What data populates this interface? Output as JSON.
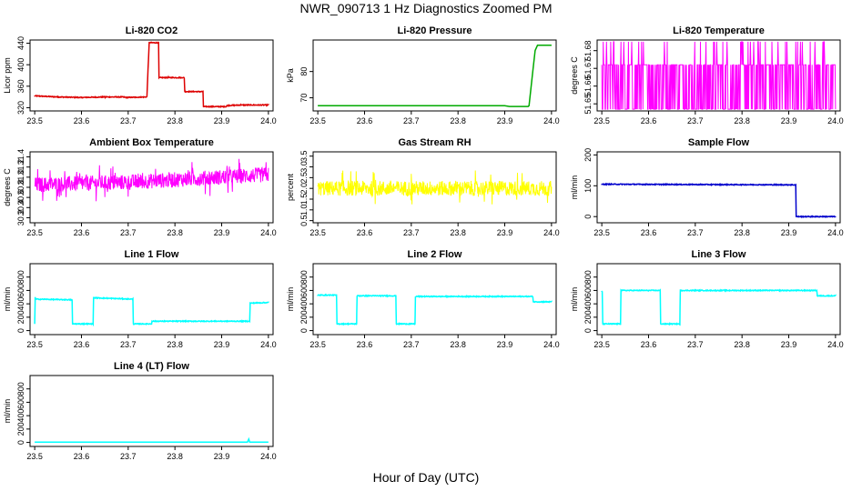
{
  "page": {
    "title": "NWR_090713  1 Hz Diagnostics Zoomed PM",
    "x_axis_title": "Hour of Day (UTC)"
  },
  "chart_data": [
    {
      "type": "line",
      "title": "Li-820 CO2",
      "ylabel": "Licor ppm",
      "color": "#dd0000",
      "xlim": [
        23.49,
        24.01
      ],
      "ylim": [
        314,
        446
      ],
      "yticks": [
        320,
        360,
        400,
        440
      ],
      "ytick_labels": [
        "320",
        "360",
        "400",
        "440"
      ],
      "xticks": [
        23.5,
        23.6,
        23.7,
        23.8,
        23.9,
        24.0
      ],
      "xtick_labels": [
        "23.5",
        "23.6",
        "23.7",
        "23.8",
        "23.9",
        "24.0"
      ],
      "noise": 1,
      "series": [
        {
          "x": [
            23.5,
            23.55,
            23.6,
            23.65,
            23.69,
            23.695,
            23.74,
            23.745,
            23.765,
            23.766,
            23.785,
            23.786,
            23.82,
            23.821,
            23.86,
            23.861,
            23.91,
            23.911,
            23.94,
            24.0
          ],
          "values": [
            342,
            340,
            339,
            340,
            340,
            339,
            340,
            441,
            441,
            376,
            376,
            376,
            376,
            350,
            350,
            322,
            322,
            324,
            325,
            325
          ]
        }
      ]
    },
    {
      "type": "line",
      "title": "Li-820 Pressure",
      "ylabel": "kPa",
      "color": "#00aa00",
      "xlim": [
        23.49,
        24.01
      ],
      "ylim": [
        65,
        92
      ],
      "yticks": [
        70,
        80
      ],
      "ytick_labels": [
        "70",
        "80"
      ],
      "xticks": [
        23.5,
        23.6,
        23.7,
        23.8,
        23.9,
        24.0
      ],
      "xtick_labels": [
        "23.5",
        "23.6",
        "23.7",
        "23.8",
        "23.9",
        "24.0"
      ],
      "noise": 0,
      "series": [
        {
          "x": [
            23.5,
            23.9,
            23.91,
            23.95,
            23.952,
            23.96,
            23.965,
            23.97,
            24.0
          ],
          "values": [
            67,
            67,
            66.7,
            66.7,
            67,
            80,
            88,
            90,
            90
          ]
        }
      ]
    },
    {
      "type": "line",
      "title": "Li-820 Temperature",
      "ylabel": "degrees C",
      "color": "#ff00ff",
      "xlim": [
        23.49,
        24.01
      ],
      "ylim": [
        51.646,
        51.686
      ],
      "yticks": [
        51.65,
        51.66,
        51.67,
        51.68
      ],
      "ytick_labels": [
        "51.65",
        "51.66",
        "51.67",
        "51.68"
      ],
      "xticks": [
        23.5,
        23.6,
        23.7,
        23.8,
        23.9,
        24.0
      ],
      "xtick_labels": [
        "23.5",
        "23.6",
        "23.7",
        "23.8",
        "23.9",
        "24.0"
      ],
      "noise": 2,
      "series": [
        {
          "x": [
            23.5,
            24.0
          ],
          "values": [
            51.672,
            51.672
          ],
          "levels": [
            51.672,
            51.647,
            51.685
          ]
        }
      ]
    },
    {
      "type": "line",
      "title": "Ambient Box Temperature",
      "ylabel": "degrees C",
      "color": "#ff00ff",
      "xlim": [
        23.49,
        24.01
      ],
      "ylim": [
        30.1,
        31.5
      ],
      "yticks": [
        30.2,
        30.4,
        30.6,
        30.8,
        31.0,
        31.2,
        31.4
      ],
      "ytick_labels": [
        "30.2",
        "30.4",
        "30.6",
        "30.8",
        "31.0",
        "31.2",
        "31.4"
      ],
      "xticks": [
        23.5,
        23.6,
        23.7,
        23.8,
        23.9,
        24.0
      ],
      "xtick_labels": [
        "23.5",
        "23.6",
        "23.7",
        "23.8",
        "23.9",
        "24.0"
      ],
      "noise": 3,
      "series": [
        {
          "x": [
            23.5,
            23.7,
            24.0
          ],
          "values": [
            30.85,
            30.9,
            31.05
          ],
          "amp": 0.15
        }
      ]
    },
    {
      "type": "line",
      "title": "Gas Stream RH",
      "ylabel": "percent",
      "color": "#ffff00",
      "xlim": [
        23.49,
        24.01
      ],
      "ylim": [
        0.4,
        3.7
      ],
      "yticks": [
        0.5,
        1.0,
        1.5,
        2.0,
        2.5,
        3.0,
        3.5
      ],
      "ytick_labels": [
        "0.5",
        "1.0",
        "1.5",
        "2.0",
        "2.5",
        "3.0",
        "3.5"
      ],
      "xticks": [
        23.5,
        23.6,
        23.7,
        23.8,
        23.9,
        24.0
      ],
      "xtick_labels": [
        "23.5",
        "23.6",
        "23.7",
        "23.8",
        "23.9",
        "24.0"
      ],
      "noise": 3,
      "series": [
        {
          "x": [
            23.5,
            24.0
          ],
          "values": [
            2.0,
            2.0
          ],
          "amp": 0.35
        }
      ]
    },
    {
      "type": "line",
      "title": "Sample Flow",
      "ylabel": "ml/min",
      "color": "#0000cc",
      "xlim": [
        23.49,
        24.01
      ],
      "ylim": [
        -20,
        210
      ],
      "yticks": [
        0,
        100,
        200
      ],
      "ytick_labels": [
        "0",
        "100",
        "200"
      ],
      "xticks": [
        23.5,
        23.6,
        23.7,
        23.8,
        23.9,
        24.0
      ],
      "xtick_labels": [
        "23.5",
        "23.6",
        "23.7",
        "23.8",
        "23.9",
        "24.0"
      ],
      "noise": 1,
      "series": [
        {
          "x": [
            23.5,
            23.915,
            23.916,
            24.0
          ],
          "values": [
            105,
            103,
            0,
            0
          ]
        }
      ]
    },
    {
      "type": "line",
      "title": "Line 1 Flow",
      "ylabel": "ml/min",
      "color": "#00ffff",
      "xlim": [
        23.49,
        24.01
      ],
      "ylim": [
        -60,
        1000
      ],
      "yticks": [
        0,
        200,
        400,
        600,
        800
      ],
      "ytick_labels": [
        "0",
        "200",
        "400",
        "600",
        "800"
      ],
      "xticks": [
        23.5,
        23.6,
        23.7,
        23.8,
        23.9,
        24.0
      ],
      "xtick_labels": [
        "23.5",
        "23.6",
        "23.7",
        "23.8",
        "23.9",
        "24.0"
      ],
      "noise": 1,
      "series": [
        {
          "x": [
            23.5,
            23.501,
            23.502,
            23.58,
            23.581,
            23.625,
            23.626,
            23.71,
            23.711,
            23.75,
            23.751,
            23.96,
            23.961,
            24.0
          ],
          "values": [
            100,
            500,
            470,
            460,
            100,
            100,
            490,
            470,
            100,
            100,
            140,
            140,
            410,
            420
          ]
        }
      ]
    },
    {
      "type": "line",
      "title": "Line 2 Flow",
      "ylabel": "ml/min",
      "color": "#00ffff",
      "xlim": [
        23.49,
        24.01
      ],
      "ylim": [
        -60,
        1000
      ],
      "yticks": [
        0,
        200,
        400,
        600,
        800
      ],
      "ytick_labels": [
        "0",
        "200",
        "400",
        "600",
        "800"
      ],
      "xticks": [
        23.5,
        23.6,
        23.7,
        23.8,
        23.9,
        24.0
      ],
      "xtick_labels": [
        "23.5",
        "23.6",
        "23.7",
        "23.8",
        "23.9",
        "24.0"
      ],
      "noise": 1,
      "series": [
        {
          "x": [
            23.5,
            23.54,
            23.541,
            23.583,
            23.584,
            23.667,
            23.668,
            23.708,
            23.709,
            23.96,
            23.961,
            24.0
          ],
          "values": [
            530,
            530,
            100,
            100,
            520,
            520,
            100,
            100,
            510,
            510,
            430,
            430
          ]
        }
      ]
    },
    {
      "type": "line",
      "title": "Line 3 Flow",
      "ylabel": "ml/min",
      "color": "#00ffff",
      "xlim": [
        23.49,
        24.01
      ],
      "ylim": [
        -60,
        1000
      ],
      "yticks": [
        0,
        200,
        400,
        600,
        800
      ],
      "ytick_labels": [
        "0",
        "200",
        "400",
        "600",
        "800"
      ],
      "xticks": [
        23.5,
        23.6,
        23.7,
        23.8,
        23.9,
        24.0
      ],
      "xtick_labels": [
        "23.5",
        "23.6",
        "23.7",
        "23.8",
        "23.9",
        "24.0"
      ],
      "noise": 1,
      "series": [
        {
          "x": [
            23.5,
            23.501,
            23.502,
            23.54,
            23.541,
            23.625,
            23.626,
            23.667,
            23.668,
            23.96,
            23.961,
            24.0
          ],
          "values": [
            590,
            590,
            100,
            100,
            600,
            600,
            100,
            100,
            600,
            600,
            520,
            520
          ]
        }
      ]
    },
    {
      "type": "line",
      "title": "Line 4 (LT) Flow",
      "ylabel": "ml/min",
      "color": "#00ffff",
      "xlim": [
        23.49,
        24.01
      ],
      "ylim": [
        -60,
        1000
      ],
      "yticks": [
        0,
        200,
        400,
        600,
        800
      ],
      "ytick_labels": [
        "0",
        "200",
        "400",
        "600",
        "800"
      ],
      "xticks": [
        23.5,
        23.6,
        23.7,
        23.8,
        23.9,
        24.0
      ],
      "xtick_labels": [
        "23.5",
        "23.6",
        "23.7",
        "23.8",
        "23.9",
        "24.0"
      ],
      "noise": 0,
      "series": [
        {
          "x": [
            23.5,
            23.955,
            23.958,
            23.96,
            24.0
          ],
          "values": [
            5,
            5,
            50,
            5,
            5
          ]
        }
      ]
    }
  ]
}
